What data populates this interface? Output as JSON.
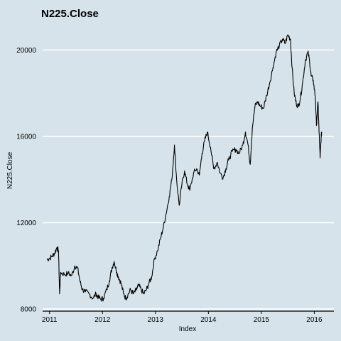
{
  "chart_data": {
    "type": "line",
    "title": "N225.Close",
    "xlabel": "Index",
    "ylabel": "N225.Close",
    "xlim": [
      2010.87,
      2016.37
    ],
    "ylim": [
      7900,
      21000
    ],
    "grid": "horizontal",
    "background": "#d6e3ea",
    "x_ticks": [
      2011,
      2012,
      2013,
      2014,
      2015,
      2016
    ],
    "y_ticks": [
      8000,
      12000,
      16000,
      20000
    ],
    "series": [
      {
        "color": "#000000",
        "points": [
          [
            2010.95,
            10300
          ],
          [
            2011.0,
            10350
          ],
          [
            2011.05,
            10450
          ],
          [
            2011.1,
            10600
          ],
          [
            2011.14,
            10850
          ],
          [
            2011.17,
            10700
          ],
          [
            2011.19,
            8700
          ],
          [
            2011.21,
            9700
          ],
          [
            2011.28,
            9600
          ],
          [
            2011.35,
            9650
          ],
          [
            2011.42,
            9550
          ],
          [
            2011.48,
            10000
          ],
          [
            2011.53,
            9900
          ],
          [
            2011.58,
            9250
          ],
          [
            2011.62,
            8900
          ],
          [
            2011.68,
            8800
          ],
          [
            2011.75,
            8700
          ],
          [
            2011.82,
            8500
          ],
          [
            2011.88,
            8700
          ],
          [
            2011.92,
            8550
          ],
          [
            2011.97,
            8450
          ],
          [
            2012.02,
            8500
          ],
          [
            2012.08,
            8900
          ],
          [
            2012.13,
            9300
          ],
          [
            2012.18,
            9900
          ],
          [
            2012.22,
            10200
          ],
          [
            2012.27,
            9700
          ],
          [
            2012.3,
            9500
          ],
          [
            2012.35,
            9200
          ],
          [
            2012.4,
            8700
          ],
          [
            2012.44,
            8500
          ],
          [
            2012.48,
            8650
          ],
          [
            2012.53,
            8900
          ],
          [
            2012.58,
            8700
          ],
          [
            2012.63,
            8850
          ],
          [
            2012.68,
            9100
          ],
          [
            2012.73,
            8900
          ],
          [
            2012.78,
            8700
          ],
          [
            2012.83,
            8900
          ],
          [
            2012.88,
            9200
          ],
          [
            2012.93,
            9500
          ],
          [
            2012.98,
            10300
          ],
          [
            2013.04,
            10700
          ],
          [
            2013.1,
            11300
          ],
          [
            2013.15,
            11800
          ],
          [
            2013.2,
            12400
          ],
          [
            2013.26,
            13200
          ],
          [
            2013.31,
            14000
          ],
          [
            2013.36,
            15600
          ],
          [
            2013.4,
            14000
          ],
          [
            2013.45,
            12800
          ],
          [
            2013.5,
            13800
          ],
          [
            2013.55,
            14400
          ],
          [
            2013.6,
            13800
          ],
          [
            2013.65,
            13500
          ],
          [
            2013.72,
            14300
          ],
          [
            2013.78,
            14500
          ],
          [
            2013.83,
            14200
          ],
          [
            2013.88,
            15200
          ],
          [
            2013.93,
            15800
          ],
          [
            2013.98,
            16200
          ],
          [
            2014.04,
            15500
          ],
          [
            2014.1,
            14500
          ],
          [
            2014.17,
            14800
          ],
          [
            2014.22,
            14300
          ],
          [
            2014.28,
            14100
          ],
          [
            2014.33,
            14500
          ],
          [
            2014.38,
            14900
          ],
          [
            2014.45,
            15300
          ],
          [
            2014.52,
            15400
          ],
          [
            2014.58,
            15200
          ],
          [
            2014.65,
            15600
          ],
          [
            2014.7,
            16200
          ],
          [
            2014.75,
            15600
          ],
          [
            2014.79,
            14700
          ],
          [
            2014.83,
            16400
          ],
          [
            2014.88,
            17400
          ],
          [
            2014.93,
            17600
          ],
          [
            2014.98,
            17400
          ],
          [
            2015.04,
            17300
          ],
          [
            2015.1,
            17900
          ],
          [
            2015.16,
            18500
          ],
          [
            2015.22,
            19200
          ],
          [
            2015.28,
            19900
          ],
          [
            2015.34,
            20200
          ],
          [
            2015.4,
            20500
          ],
          [
            2015.45,
            20300
          ],
          [
            2015.5,
            20700
          ],
          [
            2015.55,
            20500
          ],
          [
            2015.58,
            19200
          ],
          [
            2015.62,
            18000
          ],
          [
            2015.66,
            17500
          ],
          [
            2015.7,
            17400
          ],
          [
            2015.74,
            17800
          ],
          [
            2015.78,
            18500
          ],
          [
            2015.83,
            19500
          ],
          [
            2015.88,
            19900
          ],
          [
            2015.91,
            19500
          ],
          [
            2015.94,
            18800
          ],
          [
            2015.98,
            18600
          ],
          [
            2016.02,
            17800
          ],
          [
            2016.04,
            16500
          ],
          [
            2016.07,
            17600
          ],
          [
            2016.09,
            16200
          ],
          [
            2016.11,
            15000
          ],
          [
            2016.13,
            16000
          ],
          [
            2016.14,
            16200
          ]
        ]
      }
    ]
  }
}
